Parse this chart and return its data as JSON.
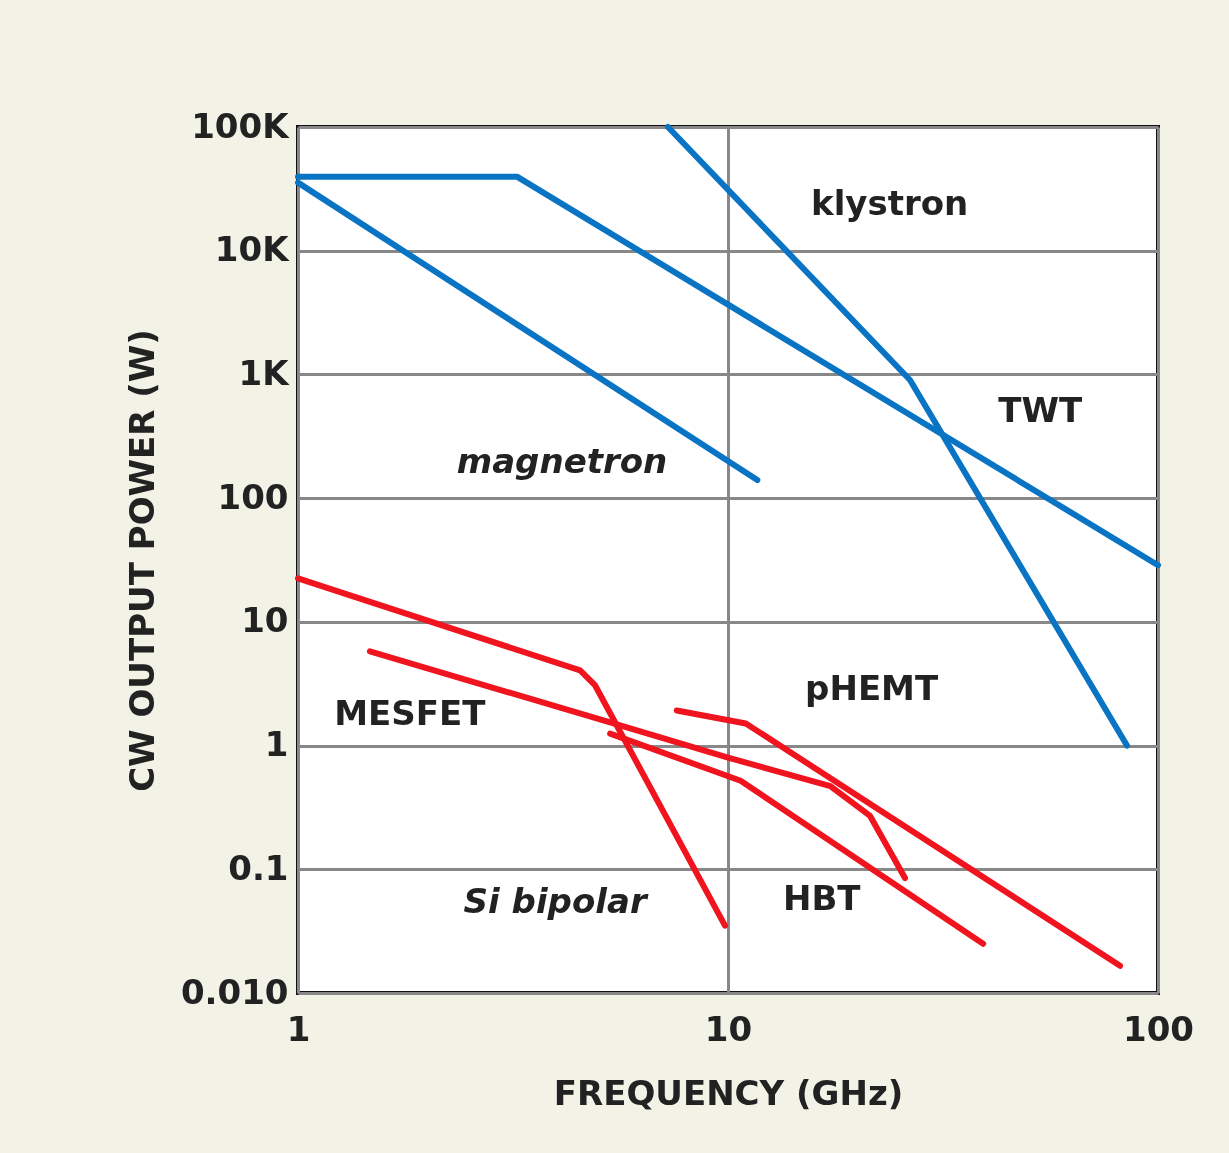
{
  "chart_data": {
    "type": "line",
    "xlabel": "FREQUENCY (GHz)",
    "ylabel": "CW OUTPUT POWER (W)",
    "log": "xy",
    "grid": true,
    "line_style": "solid",
    "marker": "none",
    "xlim": [
      1,
      100
    ],
    "xticks": [
      1,
      10,
      100
    ],
    "ylim": [
      0.01,
      100000
    ],
    "yticks": [
      {
        "value": 100000,
        "label": "100K"
      },
      {
        "value": 10000,
        "label": "10K"
      },
      {
        "value": 1000,
        "label": "1K"
      },
      100,
      10,
      1,
      0.1,
      {
        "value": 0.01,
        "label": "0.010"
      }
    ],
    "series": [
      {
        "color": "#0a74c4",
        "x": [
          7.25,
          26.5,
          84.7
        ],
        "values": [
          100000,
          902,
          1
        ]
      },
      {
        "color": "#0a74c4",
        "x": [
          1,
          3.23,
          100
        ],
        "values": [
          39700,
          39700,
          28.7
        ]
      },
      {
        "color": "#0a74c4",
        "x": [
          1,
          11.7
        ],
        "values": [
          35500,
          140
        ]
      },
      {
        "color": "#f0141e",
        "x": [
          1,
          4.53,
          4.91,
          9.84
        ],
        "values": [
          22.5,
          4.05,
          3.06,
          0.035
        ]
      },
      {
        "color": "#f0141e",
        "x": [
          1.47,
          5.32,
          10,
          17.3,
          21.4,
          25.8
        ],
        "values": [
          5.77,
          1.54,
          0.8,
          0.47,
          0.27,
          0.085
        ]
      },
      {
        "color": "#f0141e",
        "x": [
          5.32,
          10.7,
          39.2
        ],
        "values": [
          1.25,
          0.52,
          0.025
        ]
      },
      {
        "color": "#f0141e",
        "x": [
          7.6,
          11,
          81.6
        ],
        "values": [
          1.92,
          1.51,
          0.0166
        ]
      }
    ],
    "annotations": [
      "klystron",
      "TWT",
      "magnetron",
      "MESFET",
      "pHEMT",
      "Si bipolar",
      "HBT"
    ]
  }
}
